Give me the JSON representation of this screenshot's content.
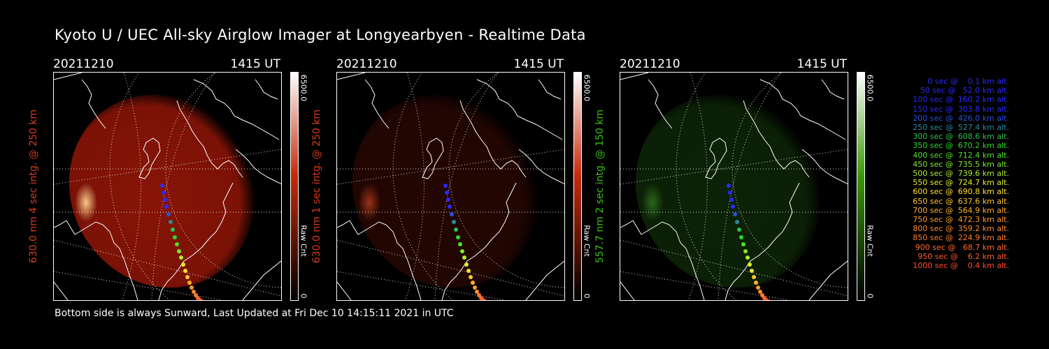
{
  "header": {
    "title": "Kyoto U / UEC All-sky Airglow Imager at Longyearbyen - Realtime Data"
  },
  "footer": {
    "text": "Bottom side is always Sunward, Last Updated at Fri Dec 10 14:15:11 2021 in UTC"
  },
  "panels": [
    {
      "date": "20211210",
      "time": "1415 UT",
      "ylabel": "630.0 nm 4 sec intg. @ 250 km",
      "colorbar_max": "6500.0",
      "colorbar_min": "0",
      "colorbar_label": "Raw Cnt",
      "ylabel_color": "#d83a1a",
      "cbar_color": "#c62a08",
      "glow_color": "#a01808",
      "aurora_color": "#ffd090",
      "glow_level": 0.85
    },
    {
      "date": "20211210",
      "time": "1415 UT",
      "ylabel": "630.0 nm 1 sec intg. @ 250 km",
      "colorbar_max": "6500.0",
      "colorbar_min": "0",
      "colorbar_label": "Raw Cnt",
      "ylabel_color": "#d83a1a",
      "cbar_color": "#c62a08",
      "glow_color": "#3c0a04",
      "aurora_color": "#a03418",
      "glow_level": 0.6
    },
    {
      "date": "20211210",
      "time": "1415 UT",
      "ylabel": "557.7 nm 2 sec intg. @ 150 km",
      "colorbar_max": "6500.0",
      "colorbar_min": "0",
      "colorbar_label": "Raw Cnt",
      "ylabel_color": "#38c018",
      "cbar_color": "#3a9a0a",
      "glow_color": "#143a0c",
      "aurora_color": "#2a6a1a",
      "glow_level": 0.6
    }
  ],
  "legend": [
    {
      "text": "0 sec @    0.1 km alt.",
      "color": "#2a2aff"
    },
    {
      "text": "50 sec @   52.0 km alt.",
      "color": "#2a2aff"
    },
    {
      "text": "100 sec @  160.2 km alt.",
      "color": "#2a2aff"
    },
    {
      "text": "150 sec @  303.8 km alt.",
      "color": "#2a2aff"
    },
    {
      "text": "200 sec @  426.0 km alt.",
      "color": "#2a50e0"
    },
    {
      "text": "250 sec @  527.4 km alt.",
      "color": "#2a8aa0"
    },
    {
      "text": "300 sec @  608.6 km alt.",
      "color": "#2ac050"
    },
    {
      "text": "350 sec @  670.2 km alt.",
      "color": "#2ad82a"
    },
    {
      "text": "400 sec @  712.4 km alt.",
      "color": "#50e02a"
    },
    {
      "text": "450 sec @  735.5 km alt.",
      "color": "#80e82a"
    },
    {
      "text": "500 sec @  739.6 km alt.",
      "color": "#b0ec2a"
    },
    {
      "text": "550 sec @  724.7 km alt.",
      "color": "#e0ee2a"
    },
    {
      "text": "600 sec @  690.8 km alt.",
      "color": "#ffe02a"
    },
    {
      "text": "650 sec @  637.6 km alt.",
      "color": "#ffc82a"
    },
    {
      "text": "700 sec @  564.9 km alt.",
      "color": "#ffb02a"
    },
    {
      "text": "750 sec @  472.3 km alt.",
      "color": "#ff9a2a"
    },
    {
      "text": "800 sec @  359.2 km alt.",
      "color": "#ff8a2a"
    },
    {
      "text": "850 sec @  224.9 km alt.",
      "color": "#ff7a2a"
    },
    {
      "text": "900 sec @   68.7 km alt.",
      "color": "#ff6a2a"
    },
    {
      "text": "950 sec @    6.2 km alt.",
      "color": "#ff5a2a"
    },
    {
      "text": "1000 sec @    0.4 km alt.",
      "color": "#ff4a2a"
    }
  ]
}
